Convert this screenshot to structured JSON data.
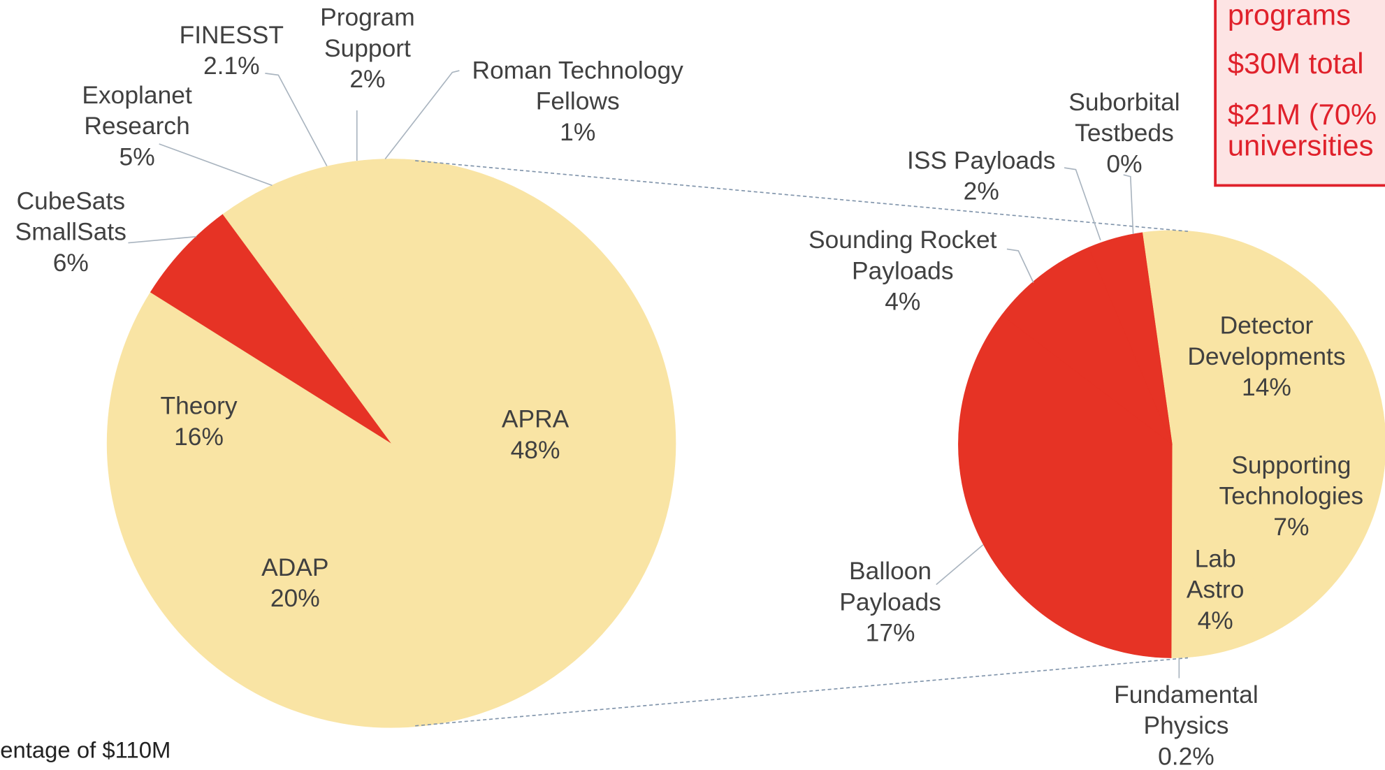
{
  "chart_data": [
    {
      "type": "pie",
      "labels": [
        "APRA",
        "ADAP",
        "Theory",
        "CubeSats SmallSats",
        "Exoplanet Research",
        "FINESST",
        "Program Support",
        "Roman Technology Fellows"
      ],
      "values": [
        48,
        20,
        16,
        6,
        5,
        2.1,
        2,
        1
      ],
      "value_labels": [
        "48%",
        "20%",
        "16%",
        "6%",
        "5%",
        "2.1%",
        "2%",
        "1%"
      ],
      "colors": [
        "#f9e4a4",
        "#f9e4a4",
        "#f9e4a4",
        "#e63325",
        "#f9e4a4",
        "#f9e4a4",
        "#f9e4a4",
        "#f9e4a4"
      ]
    },
    {
      "type": "pie",
      "labels": [
        "Detector Developments",
        "Supporting Technologies",
        "Lab Astro",
        "Fundamental Physics",
        "Balloon Payloads",
        "Sounding Rocket Payloads",
        "ISS Payloads",
        "Suborbital Testbeds"
      ],
      "values": [
        14,
        7,
        4,
        0.2,
        17,
        4,
        2,
        0
      ],
      "value_labels": [
        "14%",
        "7%",
        "4%",
        "0.2%",
        "17%",
        "4%",
        "2%",
        "0%"
      ],
      "colors": [
        "#f9e4a4",
        "#f9e4a4",
        "#f9e4a4",
        "#f9e4a4",
        "#e63325",
        "#e63325",
        "#e63325",
        "#e63325"
      ]
    }
  ],
  "annotations": [
    "programs",
    "$30M total",
    "$21M (70%",
    "universities"
  ],
  "footnote": "entage of $110M"
}
